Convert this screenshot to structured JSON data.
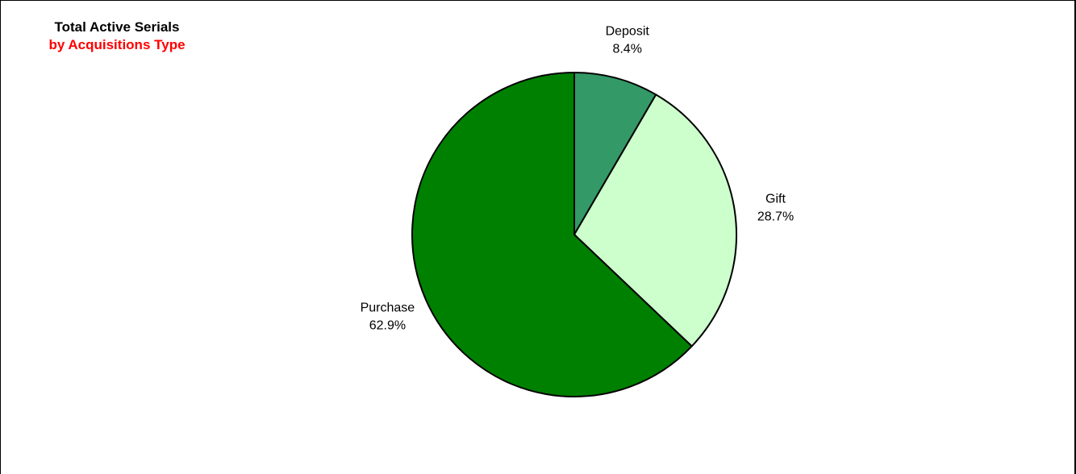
{
  "titles": {
    "main": "Total Active Serials",
    "sub": "by Acquisitions Type"
  },
  "colors": {
    "title_main": "#000000",
    "title_sub": "#ff0000",
    "slice_outline": "#000000"
  },
  "chart_data": {
    "type": "pie",
    "title": "Total Active Serials",
    "subtitle": "by Acquisitions Type",
    "start_angle_deg": 0,
    "direction": "clockwise",
    "slices": [
      {
        "label": "Deposit",
        "value": 8.4,
        "value_label": "8.4%",
        "color": "#339966"
      },
      {
        "label": "Gift",
        "value": 28.7,
        "value_label": "28.7%",
        "color": "#ccffcc"
      },
      {
        "label": "Purchase",
        "value": 62.9,
        "value_label": "62.9%",
        "color": "#008000"
      }
    ]
  }
}
